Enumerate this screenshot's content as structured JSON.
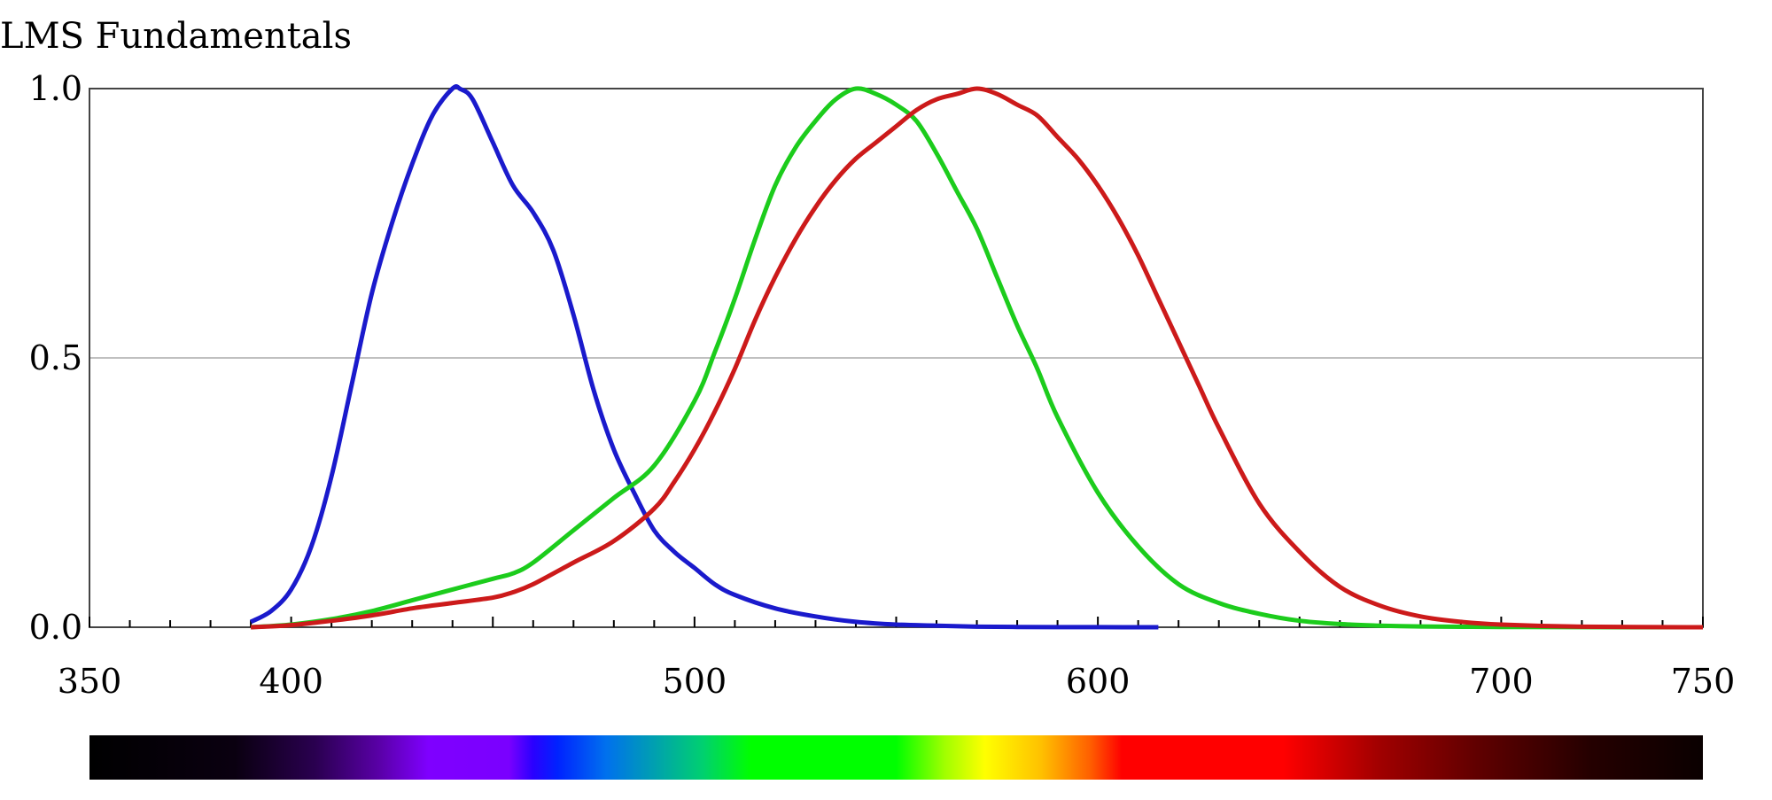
{
  "chart_data": {
    "type": "line",
    "title": "LMS Fundamentals",
    "xlim": [
      350,
      750
    ],
    "ylim": [
      0,
      1
    ],
    "x_ticks": [
      350,
      400,
      500,
      600,
      700,
      750
    ],
    "x_tick_labels": [
      "350",
      "400",
      "500",
      "600",
      "700",
      "750"
    ],
    "y_ticks": [
      0,
      0.5,
      1
    ],
    "y_tick_labels": [
      "0.0",
      "0.5",
      "1.0"
    ],
    "grid": "horizontal",
    "spectrum_bar": true,
    "series": [
      {
        "color": "#1a1acc",
        "x": [
          390,
          395,
          400,
          405,
          410,
          415,
          420,
          425,
          430,
          435,
          440,
          442,
          445,
          450,
          455,
          460,
          465,
          470,
          475,
          480,
          485,
          490,
          495,
          500,
          505,
          510,
          520,
          530,
          540,
          550,
          560,
          570,
          580,
          590,
          600,
          615
        ],
        "y": [
          0.01,
          0.03,
          0.07,
          0.15,
          0.28,
          0.45,
          0.62,
          0.75,
          0.86,
          0.95,
          1.0,
          0.999,
          0.98,
          0.9,
          0.82,
          0.77,
          0.7,
          0.58,
          0.44,
          0.33,
          0.25,
          0.18,
          0.14,
          0.11,
          0.08,
          0.06,
          0.035,
          0.02,
          0.01,
          0.005,
          0.003,
          0.001,
          0.0005,
          0.0002,
          0.0001,
          0.0
        ]
      },
      {
        "color": "#1ccc1c",
        "x": [
          390,
          400,
          410,
          420,
          430,
          440,
          450,
          455,
          460,
          470,
          480,
          490,
          500,
          505,
          510,
          515,
          520,
          525,
          530,
          535,
          540,
          545,
          550,
          555,
          560,
          565,
          570,
          575,
          580,
          585,
          590,
          600,
          610,
          620,
          630,
          640,
          650,
          660,
          670,
          680,
          700,
          720,
          750
        ],
        "y": [
          0.0,
          0.005,
          0.015,
          0.03,
          0.05,
          0.07,
          0.09,
          0.1,
          0.12,
          0.18,
          0.24,
          0.3,
          0.42,
          0.51,
          0.61,
          0.72,
          0.82,
          0.89,
          0.94,
          0.98,
          1.0,
          0.99,
          0.97,
          0.94,
          0.88,
          0.81,
          0.74,
          0.65,
          0.56,
          0.48,
          0.39,
          0.25,
          0.15,
          0.08,
          0.045,
          0.025,
          0.012,
          0.006,
          0.003,
          0.0015,
          0.0005,
          0.0001,
          0.0
        ]
      },
      {
        "color": "#cc1a1a",
        "x": [
          390,
          400,
          410,
          420,
          430,
          440,
          450,
          455,
          460,
          470,
          480,
          490,
          495,
          500,
          505,
          510,
          515,
          520,
          525,
          530,
          535,
          540,
          545,
          550,
          555,
          560,
          565,
          570,
          575,
          580,
          585,
          590,
          595,
          600,
          605,
          610,
          615,
          620,
          625,
          630,
          640,
          650,
          660,
          670,
          680,
          690,
          700,
          720,
          750
        ],
        "y": [
          0.0,
          0.004,
          0.012,
          0.022,
          0.035,
          0.045,
          0.055,
          0.065,
          0.08,
          0.12,
          0.16,
          0.22,
          0.27,
          0.33,
          0.4,
          0.48,
          0.57,
          0.65,
          0.72,
          0.78,
          0.83,
          0.87,
          0.9,
          0.93,
          0.96,
          0.98,
          0.99,
          1.0,
          0.99,
          0.97,
          0.95,
          0.91,
          0.87,
          0.82,
          0.76,
          0.69,
          0.61,
          0.53,
          0.45,
          0.37,
          0.23,
          0.14,
          0.075,
          0.04,
          0.02,
          0.01,
          0.005,
          0.001,
          0.0
        ]
      }
    ]
  }
}
